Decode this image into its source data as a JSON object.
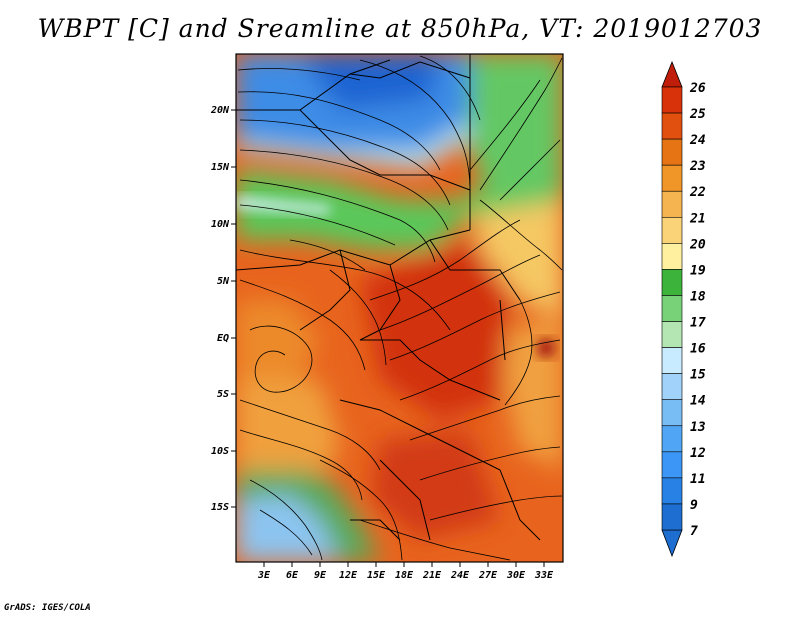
{
  "title": "WBPT [C] and Sreamline at 850hPa, VT: 2019012703",
  "credit": "GrADS: IGES/COLA",
  "map": {
    "lat_labels": [
      "20N",
      "15N",
      "10N",
      "5N",
      "EQ",
      "5S",
      "10S",
      "15S"
    ],
    "lon_labels": [
      "3E",
      "6E",
      "9E",
      "12E",
      "15E",
      "18E",
      "21E",
      "24E",
      "27E",
      "30E",
      "33E"
    ]
  },
  "colorbar": {
    "labels": [
      "7",
      "9",
      "11",
      "12",
      "13",
      "14",
      "15",
      "16",
      "17",
      "18",
      "19",
      "20",
      "21",
      "22",
      "23",
      "24",
      "25",
      "26"
    ],
    "colors": [
      "#1e6ed2",
      "#2882e6",
      "#3c96f5",
      "#50a5f5",
      "#78bef5",
      "#a0d2fa",
      "#c8ebff",
      "#b4e6b4",
      "#78d278",
      "#3cb43c",
      "#fff0a0",
      "#fad278",
      "#f5b450",
      "#f09628",
      "#e67314",
      "#e1500f",
      "#d7320a",
      "#c01e0a"
    ]
  }
}
